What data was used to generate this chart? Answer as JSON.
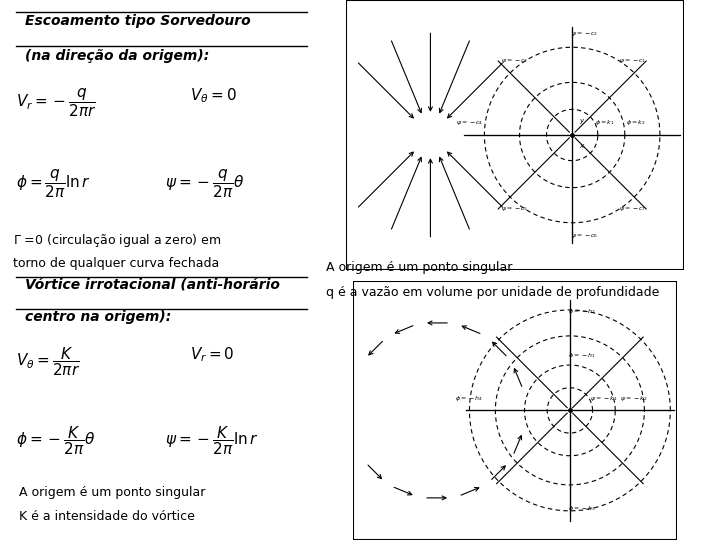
{
  "bg_color": "#ffffff",
  "title1": "Escoamento tipo Sorvedouro",
  "title1b": "(na direção da origem):",
  "eq1a": "$V_r = -\\dfrac{q}{2\\pi r}$",
  "eq1b": "$V_{\\theta} = 0$",
  "eq1c": "$\\phi = \\dfrac{q}{2\\pi}\\ln r$",
  "eq1d": "$\\psi = -\\dfrac{q}{2\\pi}\\theta$",
  "note1a": "$\\Gamma$ =0 (circulação igual a zero) em",
  "note1b": "torno de qualquer curva fechada",
  "note1c": "A origem é um ponto singular",
  "note1d": "q é a vazão em volume por unidade de profundidade",
  "title2": "Vórtice irrotacional (anti-horário",
  "title2b": "centro na origem):",
  "eq2a": "$V_{\\theta} = \\dfrac{K}{2\\pi r}$",
  "eq2b": "$V_r = 0$",
  "eq2c": "$\\phi = -\\dfrac{K}{2\\pi}\\theta$",
  "eq2d": "$\\psi = -\\dfrac{K}{2\\pi}\\ln r$",
  "note2a": "A origem é um ponto singular",
  "note2b": "K é a intensidade do vórtice",
  "arrow_color": "#000000"
}
